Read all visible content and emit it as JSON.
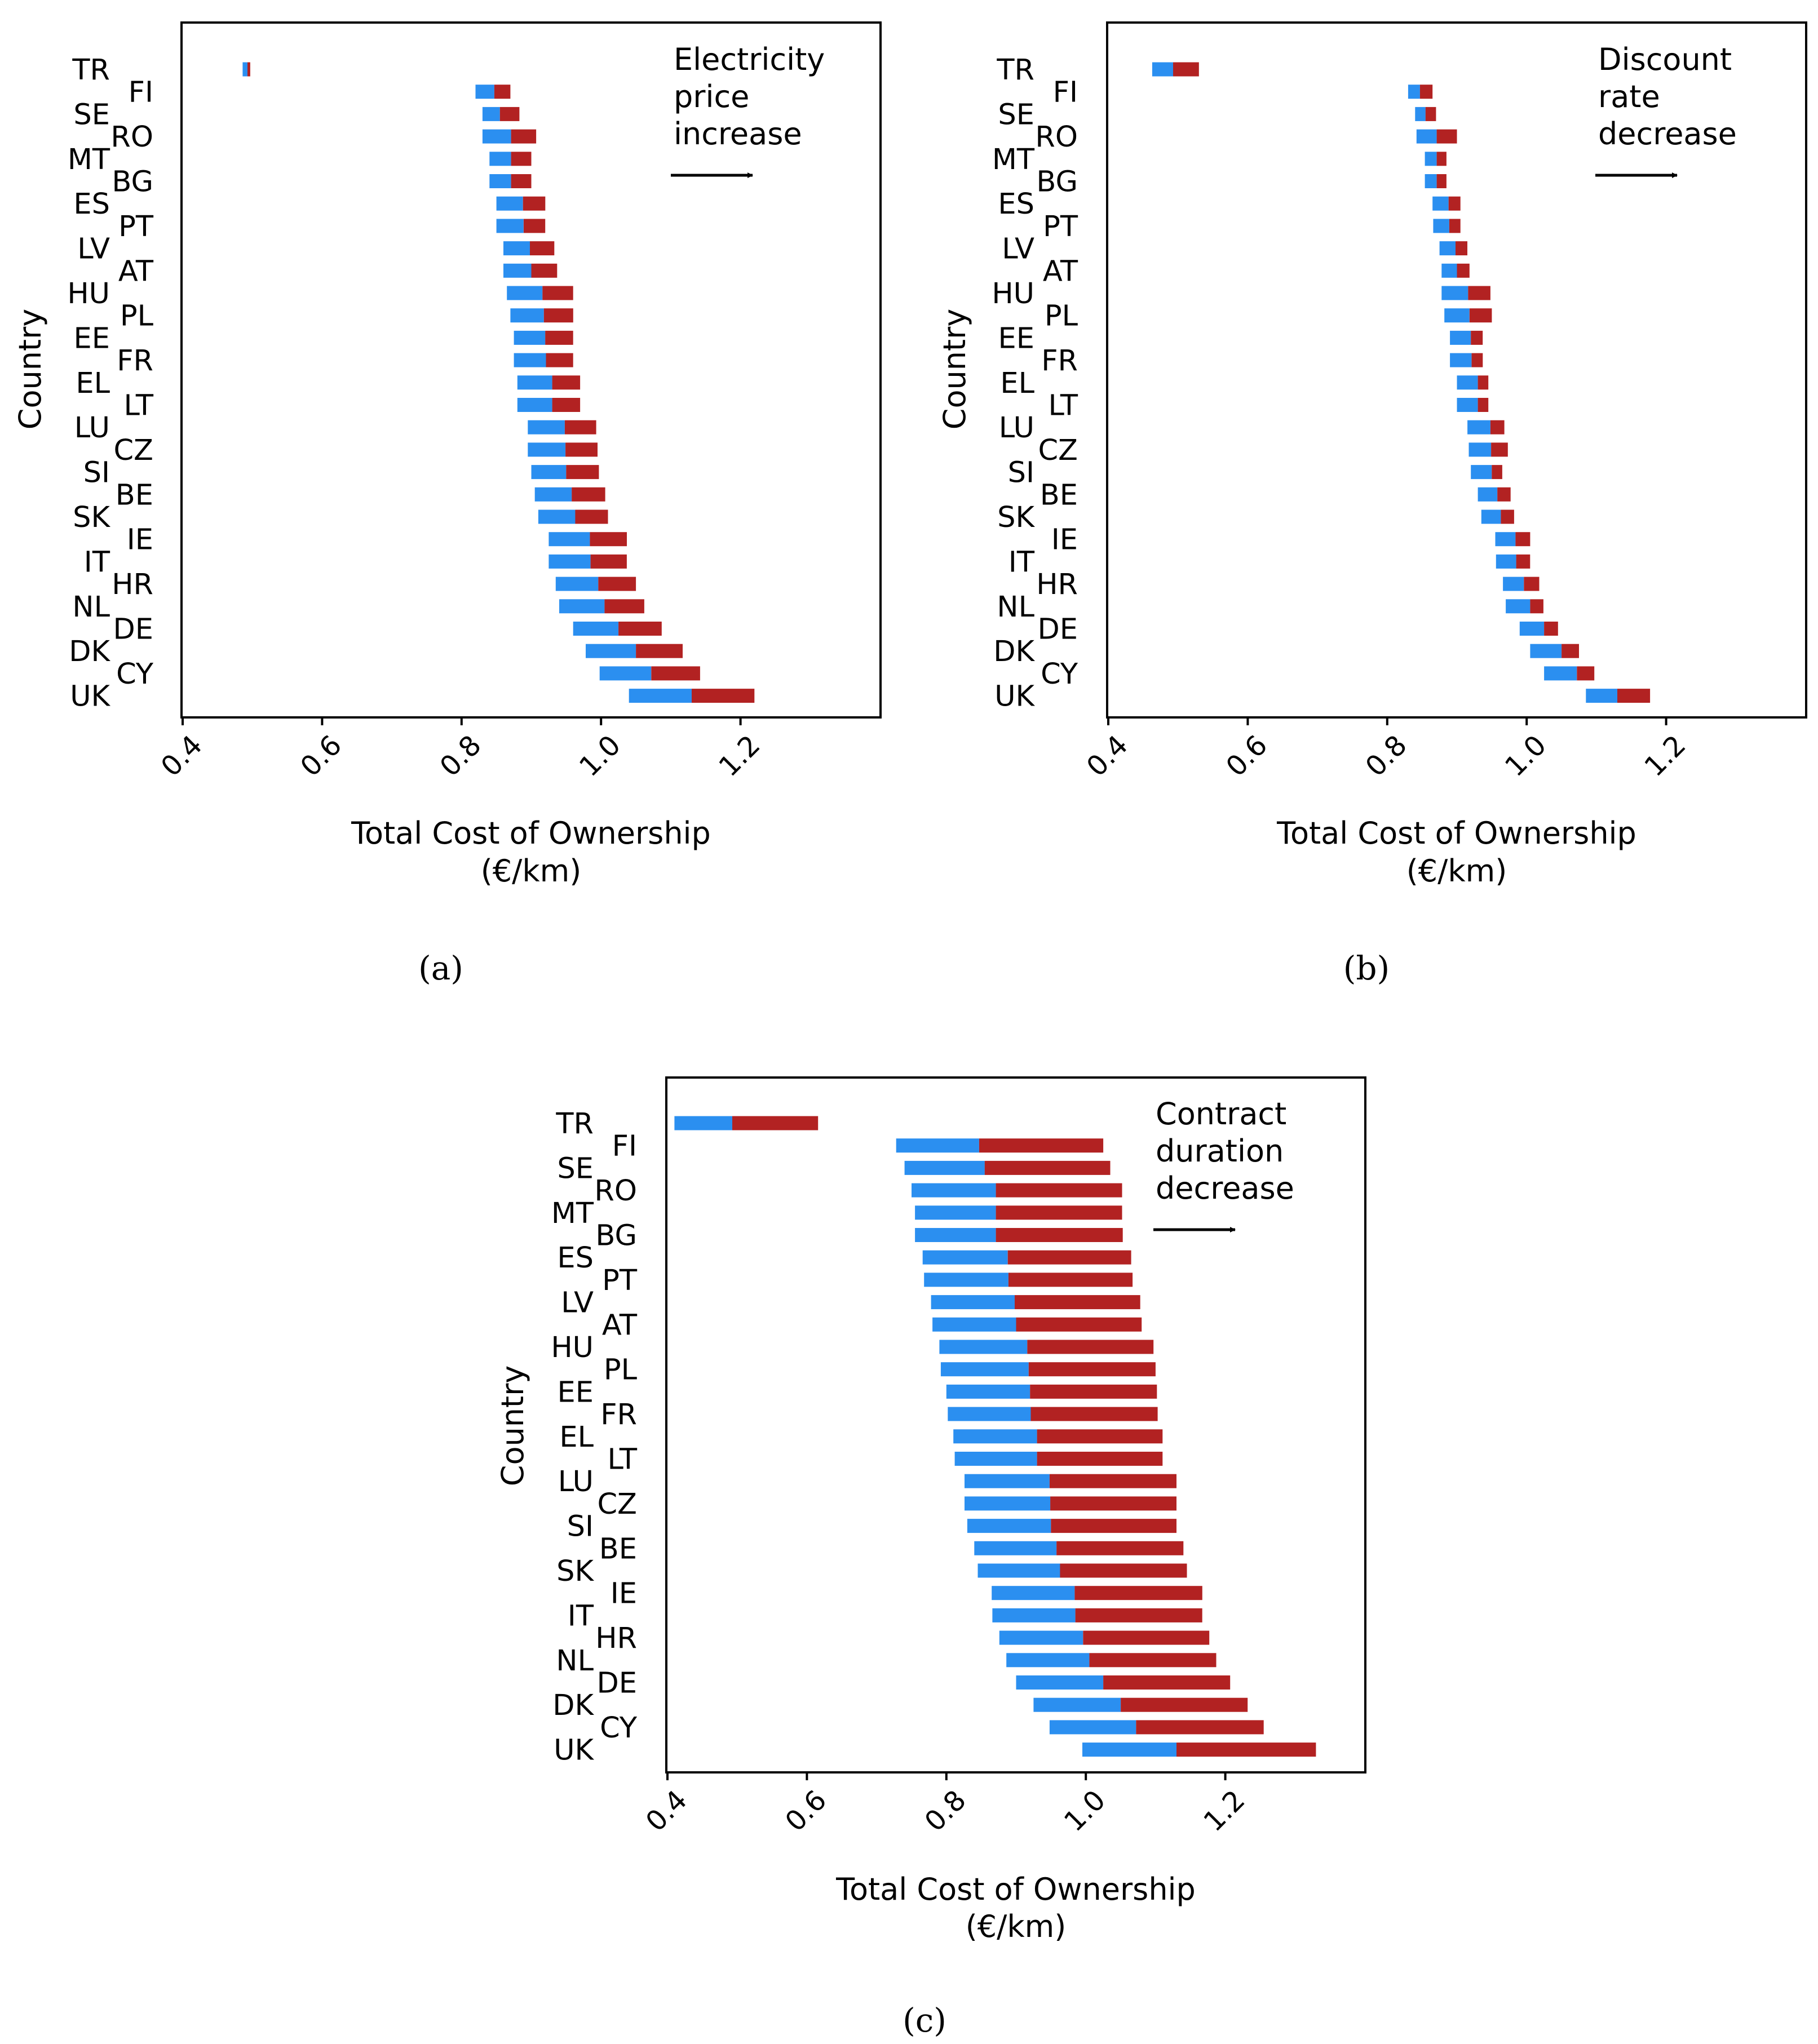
{
  "colors": {
    "low_bar": "#2b8ff0",
    "high_bar": "#b22222",
    "axis": "#000000"
  },
  "panels": [
    {
      "id": "a",
      "panel_label": "(a)",
      "annotation_lines": [
        "Electricity",
        "price",
        "increase"
      ]
    },
    {
      "id": "b",
      "panel_label": "(b)",
      "annotation_lines": [
        "Discount",
        "rate",
        "decrease"
      ]
    },
    {
      "id": "c",
      "panel_label": "(c)",
      "annotation_lines": [
        "Contract",
        "duration",
        "decrease"
      ]
    }
  ],
  "chart_data": [
    {
      "type": "bar",
      "orientation": "horizontal",
      "title": "Electricity price increase",
      "xlabel": "Total Cost of Ownership (€/km)",
      "ylabel": "Country",
      "xlim": [
        0.4,
        1.4
      ],
      "xticks": [
        "0.4",
        "0.6",
        "0.8",
        "1.0",
        "1.2"
      ],
      "categories": [
        "TR",
        "FI",
        "SE",
        "RO",
        "MT",
        "BG",
        "ES",
        "PT",
        "LV",
        "AT",
        "HU",
        "PL",
        "EE",
        "FR",
        "EL",
        "LT",
        "LU",
        "CZ",
        "SI",
        "BE",
        "SK",
        "IE",
        "IT",
        "HR",
        "NL",
        "DE",
        "DK",
        "CY",
        "UK"
      ],
      "series": [
        {
          "name": "base",
          "values": [
            0.486,
            0.82,
            0.83,
            0.83,
            0.84,
            0.84,
            0.85,
            0.85,
            0.86,
            0.86,
            0.865,
            0.87,
            0.875,
            0.875,
            0.88,
            0.88,
            0.895,
            0.895,
            0.9,
            0.905,
            0.91,
            0.925,
            0.925,
            0.935,
            0.94,
            0.96,
            0.978,
            0.998,
            1.04
          ]
        },
        {
          "name": "low",
          "values": [
            0.493,
            0.847,
            0.855,
            0.871,
            0.871,
            0.871,
            0.888,
            0.889,
            0.898,
            0.9,
            0.916,
            0.918,
            0.92,
            0.921,
            0.93,
            0.93,
            0.948,
            0.949,
            0.95,
            0.958,
            0.963,
            0.984,
            0.985,
            0.996,
            1.005,
            1.025,
            1.05,
            1.072,
            1.13
          ]
        },
        {
          "name": "high",
          "values": [
            0.497,
            0.87,
            0.883,
            0.907,
            0.9,
            0.9,
            0.92,
            0.92,
            0.933,
            0.937,
            0.96,
            0.96,
            0.96,
            0.96,
            0.97,
            0.97,
            0.993,
            0.995,
            0.997,
            1.006,
            1.01,
            1.037,
            1.037,
            1.05,
            1.062,
            1.087,
            1.117,
            1.142,
            1.22
          ]
        }
      ]
    },
    {
      "type": "bar",
      "orientation": "horizontal",
      "title": "Discount rate decrease",
      "xlabel": "Total Cost of Ownership (€/km)",
      "ylabel": "Country",
      "xlim": [
        0.4,
        1.4
      ],
      "xticks": [
        "0.4",
        "0.6",
        "0.8",
        "1.0",
        "1.2"
      ],
      "categories": [
        "TR",
        "FI",
        "SE",
        "RO",
        "MT",
        "BG",
        "ES",
        "PT",
        "LV",
        "AT",
        "HU",
        "PL",
        "EE",
        "FR",
        "EL",
        "LT",
        "LU",
        "CZ",
        "SI",
        "BE",
        "SK",
        "IE",
        "IT",
        "HR",
        "NL",
        "DE",
        "DK",
        "CY",
        "UK"
      ],
      "series": [
        {
          "name": "base",
          "values": [
            0.463,
            0.83,
            0.84,
            0.842,
            0.854,
            0.854,
            0.865,
            0.866,
            0.875,
            0.878,
            0.878,
            0.882,
            0.89,
            0.89,
            0.9,
            0.9,
            0.915,
            0.917,
            0.92,
            0.93,
            0.935,
            0.955,
            0.956,
            0.966,
            0.97,
            0.99,
            1.005,
            1.025,
            1.085
          ]
        },
        {
          "name": "low",
          "values": [
            0.493,
            0.847,
            0.855,
            0.871,
            0.871,
            0.871,
            0.888,
            0.889,
            0.898,
            0.9,
            0.916,
            0.918,
            0.92,
            0.921,
            0.93,
            0.93,
            0.948,
            0.949,
            0.95,
            0.958,
            0.963,
            0.984,
            0.985,
            0.996,
            1.005,
            1.025,
            1.05,
            1.072,
            1.13
          ]
        },
        {
          "name": "high",
          "values": [
            0.53,
            0.865,
            0.87,
            0.9,
            0.885,
            0.885,
            0.905,
            0.905,
            0.915,
            0.918,
            0.948,
            0.95,
            0.937,
            0.937,
            0.945,
            0.945,
            0.968,
            0.973,
            0.965,
            0.977,
            0.982,
            1.005,
            1.005,
            1.018,
            1.024,
            1.045,
            1.075,
            1.097,
            1.177
          ]
        }
      ]
    },
    {
      "type": "bar",
      "orientation": "horizontal",
      "title": "Contract duration decrease",
      "xlabel": "Total Cost of Ownership (€/km)",
      "ylabel": "Country",
      "xlim": [
        0.4,
        1.4
      ],
      "xticks": [
        "0.4",
        "0.6",
        "0.8",
        "1.0",
        "1.2"
      ],
      "categories": [
        "TR",
        "FI",
        "SE",
        "RO",
        "MT",
        "BG",
        "ES",
        "PT",
        "LV",
        "AT",
        "HU",
        "PL",
        "EE",
        "FR",
        "EL",
        "LT",
        "LU",
        "CZ",
        "SI",
        "BE",
        "SK",
        "IE",
        "IT",
        "HR",
        "NL",
        "DE",
        "DK",
        "CY",
        "UK"
      ],
      "series": [
        {
          "name": "base",
          "values": [
            0.41,
            0.728,
            0.74,
            0.75,
            0.755,
            0.755,
            0.766,
            0.768,
            0.778,
            0.78,
            0.79,
            0.792,
            0.8,
            0.802,
            0.81,
            0.812,
            0.826,
            0.826,
            0.83,
            0.84,
            0.845,
            0.865,
            0.866,
            0.876,
            0.886,
            0.9,
            0.925,
            0.948,
            0.995
          ]
        },
        {
          "name": "low",
          "values": [
            0.493,
            0.847,
            0.855,
            0.871,
            0.871,
            0.871,
            0.888,
            0.889,
            0.898,
            0.9,
            0.916,
            0.918,
            0.92,
            0.921,
            0.93,
            0.93,
            0.948,
            0.949,
            0.95,
            0.958,
            0.963,
            0.984,
            0.985,
            0.996,
            1.005,
            1.025,
            1.05,
            1.072,
            1.13
          ]
        },
        {
          "name": "high",
          "values": [
            0.616,
            1.025,
            1.035,
            1.052,
            1.052,
            1.053,
            1.065,
            1.067,
            1.078,
            1.08,
            1.097,
            1.1,
            1.102,
            1.103,
            1.11,
            1.11,
            1.13,
            1.13,
            1.13,
            1.14,
            1.145,
            1.167,
            1.167,
            1.177,
            1.187,
            1.207,
            1.232,
            1.255,
            1.33
          ]
        }
      ]
    }
  ]
}
